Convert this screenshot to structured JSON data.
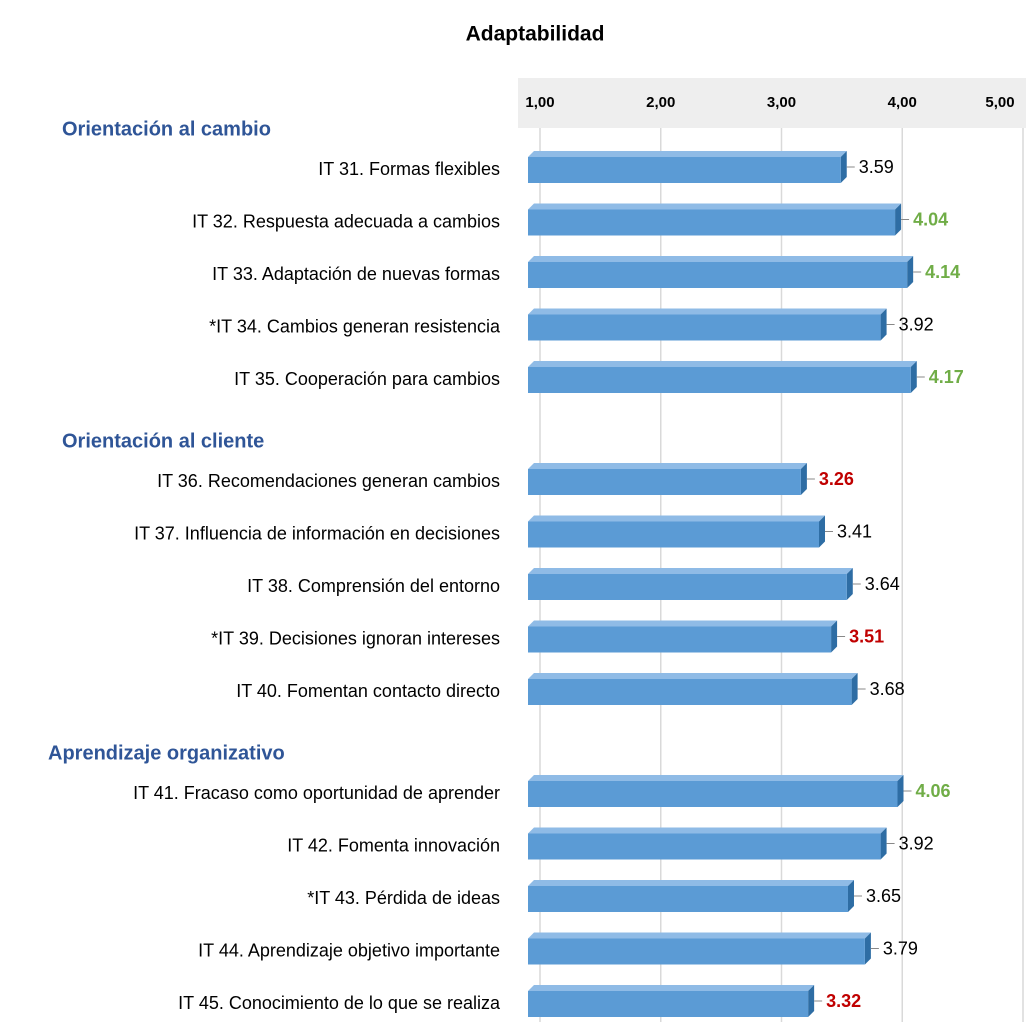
{
  "chart_data": {
    "type": "bar",
    "orientation": "horizontal",
    "title": "Adaptabilidad",
    "xlim": [
      1,
      5
    ],
    "xticks": [
      {
        "value": 1,
        "label": "1,00"
      },
      {
        "value": 2,
        "label": "2,00"
      },
      {
        "value": 3,
        "label": "3,00"
      },
      {
        "value": 4,
        "label": "4,00"
      },
      {
        "value": 5,
        "label": "5,00"
      }
    ],
    "grid": true,
    "color": "#5b9bd5",
    "groups": [
      {
        "name": "Orientación al cambio",
        "categories": [
          "IT 31. Formas flexibles",
          "IT 32. Respuesta adecuada a cambios",
          "IT 33. Adaptación de nuevas formas",
          "*IT 34. Cambios generan resistencia",
          "IT 35. Cooperación para cambios"
        ],
        "values": [
          3.59,
          4.04,
          4.14,
          3.92,
          4.17
        ],
        "label_colors": [
          "#000000",
          "#70ad47",
          "#70ad47",
          "#000000",
          "#70ad47"
        ]
      },
      {
        "name": "Orientación al cliente",
        "categories": [
          "IT 36. Recomendaciones generan cambios",
          "IT 37. Influencia de información en decisiones",
          "IT 38. Comprensión del entorno",
          "*IT 39. Decisiones ignoran intereses",
          "IT 40. Fomentan contacto directo"
        ],
        "values": [
          3.26,
          3.41,
          3.64,
          3.51,
          3.68
        ],
        "label_colors": [
          "#c00000",
          "#000000",
          "#000000",
          "#c00000",
          "#000000"
        ]
      },
      {
        "name": "Aprendizaje organizativo",
        "categories": [
          "IT 41. Fracaso como oportunidad de aprender",
          "IT 42. Fomenta innovación",
          "*IT 43. Pérdida de ideas",
          "IT 44. Aprendizaje objetivo importante",
          "IT 45. Conocimiento de lo que se realiza"
        ],
        "values": [
          4.06,
          3.92,
          3.65,
          3.79,
          3.32
        ],
        "label_colors": [
          "#70ad47",
          "#000000",
          "#000000",
          "#000000",
          "#c00000"
        ]
      }
    ]
  }
}
